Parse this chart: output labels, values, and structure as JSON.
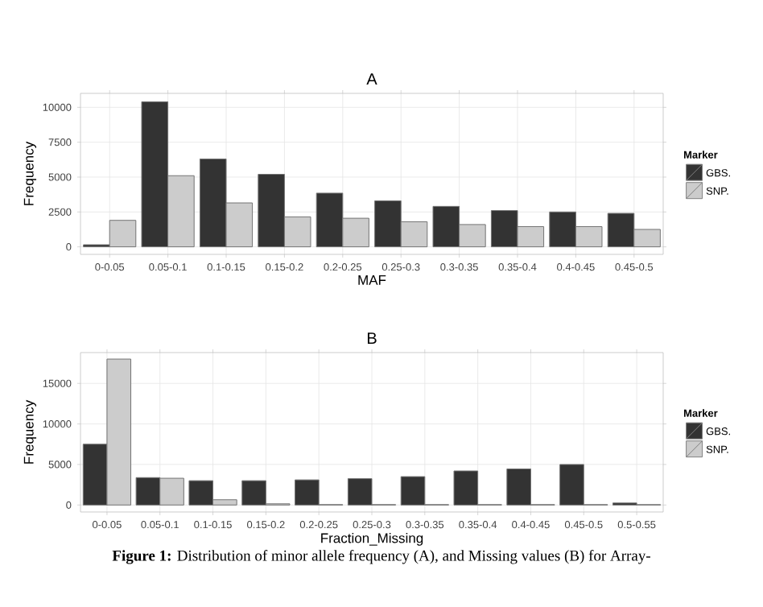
{
  "chart_data": [
    {
      "type": "bar",
      "title": "A",
      "xlabel": "MAF",
      "ylabel": "Frequency",
      "legend_title": "Marker",
      "legend": "right",
      "grid": true,
      "categories": [
        "0-0.05",
        "0.05-0.1",
        "0.1-0.15",
        "0.15-0.2",
        "0.2-0.25",
        "0.25-0.3",
        "0.3-0.35",
        "0.35-0.4",
        "0.4-0.45",
        "0.45-0.5"
      ],
      "series": [
        {
          "name": "GBS.",
          "color": "#333333",
          "values": [
            150,
            10400,
            6300,
            5200,
            3850,
            3300,
            2900,
            2600,
            2500,
            2400
          ]
        },
        {
          "name": "SNP.",
          "color": "#cccccc",
          "values": [
            1900,
            5100,
            3150,
            2150,
            2050,
            1800,
            1600,
            1450,
            1450,
            1250
          ]
        }
      ],
      "ylim": [
        -540,
        11000
      ],
      "yticks": [
        0,
        2500,
        5000,
        7500,
        10000
      ]
    },
    {
      "type": "bar",
      "title": "B",
      "xlabel": "Fraction_Missing",
      "ylabel": "Frequency",
      "legend_title": "Marker",
      "legend": "right",
      "grid": true,
      "categories": [
        "0-0.05",
        "0.05-0.1",
        "0.1-0.15",
        "0.15-0.2",
        "0.2-0.25",
        "0.25-0.3",
        "0.3-0.35",
        "0.35-0.4",
        "0.4-0.45",
        "0.45-0.5",
        "0.5-0.55"
      ],
      "series": [
        {
          "name": "GBS.",
          "color": "#333333",
          "values": [
            7500,
            3380,
            3000,
            3000,
            3100,
            3250,
            3500,
            4200,
            4450,
            5000,
            250
          ]
        },
        {
          "name": "SNP.",
          "color": "#cccccc",
          "values": [
            18000,
            3300,
            650,
            150,
            50,
            50,
            50,
            50,
            50,
            50,
            50
          ]
        }
      ],
      "ylim": [
        -860,
        18800
      ],
      "yticks": [
        0,
        5000,
        10000,
        15000
      ],
      "annotations": [
        "**Figure 1:** Distribution of minor allele frequency (A), and Missing values (B) for Array-"
      ]
    }
  ]
}
